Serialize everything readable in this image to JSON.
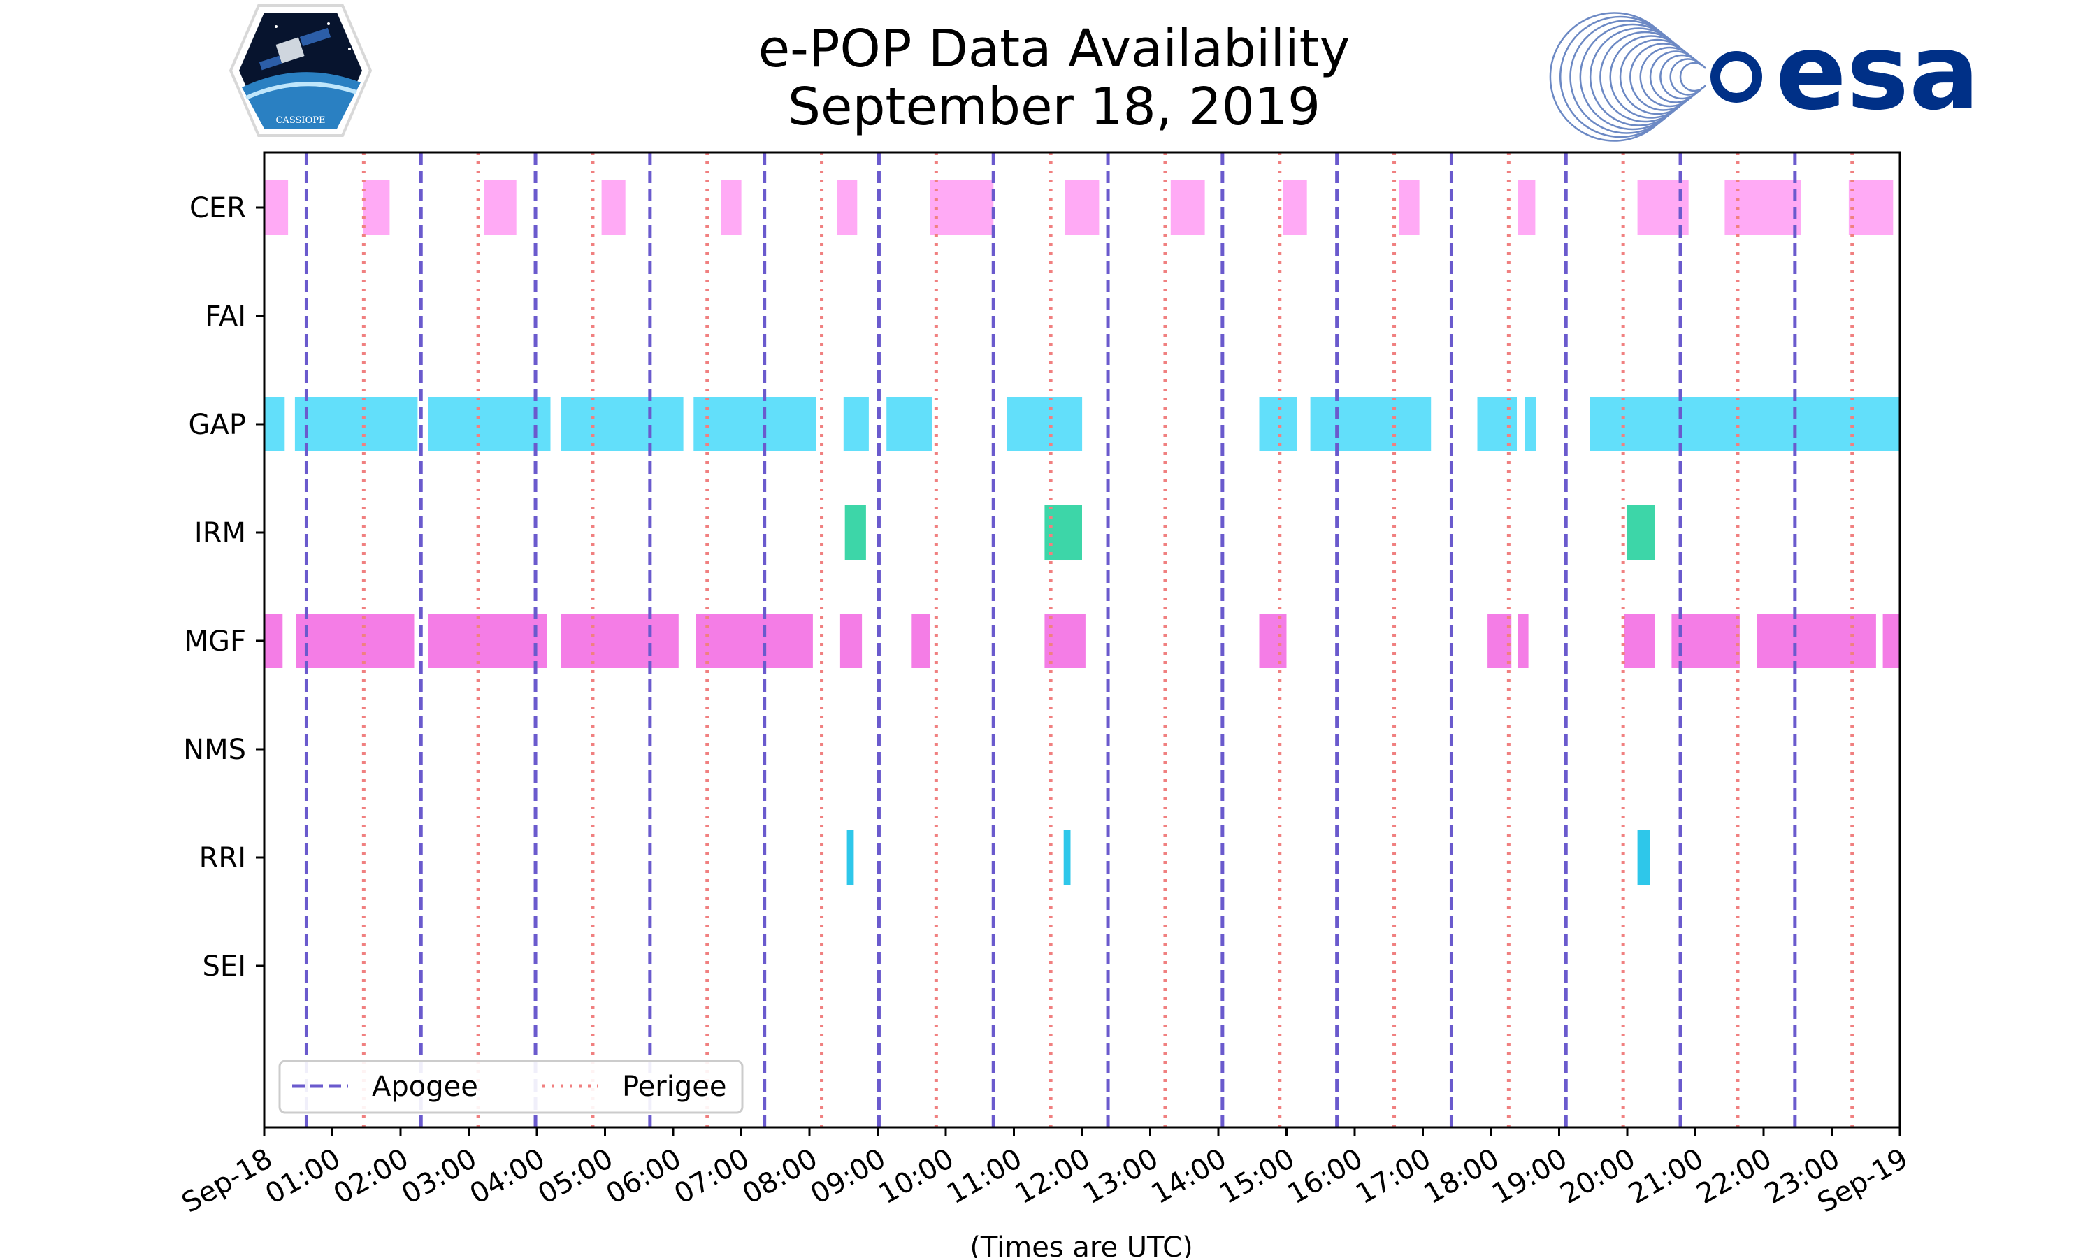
{
  "chart_data": {
    "type": "timeline",
    "title": "e-POP Data Availability",
    "subtitle": "September 18, 2019",
    "xlabel": "(Times are UTC)",
    "x_range_hours": [
      0,
      24
    ],
    "x_ticks": [
      "Sep-18",
      "01:00",
      "02:00",
      "03:00",
      "04:00",
      "05:00",
      "06:00",
      "07:00",
      "08:00",
      "09:00",
      "10:00",
      "11:00",
      "12:00",
      "13:00",
      "14:00",
      "15:00",
      "16:00",
      "17:00",
      "18:00",
      "19:00",
      "20:00",
      "21:00",
      "22:00",
      "23:00",
      "Sep-19"
    ],
    "instruments": [
      "CER",
      "FAI",
      "GAP",
      "IRM",
      "MGF",
      "NMS",
      "RRI",
      "SEI"
    ],
    "colors": {
      "CER": "#ffaaf5",
      "GAP": "#62dffa",
      "IRM": "#3dd6a8",
      "MGF": "#f47de6",
      "RRI": "#2ec7ea",
      "apogee": "#6a5acd",
      "perigee": "#f08080"
    },
    "intervals": {
      "CER": [
        [
          0.0,
          0.35
        ],
        [
          1.45,
          1.84
        ],
        [
          3.23,
          3.7
        ],
        [
          4.95,
          5.3
        ],
        [
          6.7,
          7.0
        ],
        [
          8.4,
          8.7
        ],
        [
          9.77,
          10.7
        ],
        [
          11.75,
          12.25
        ],
        [
          13.3,
          13.8
        ],
        [
          14.95,
          15.3
        ],
        [
          16.65,
          16.95
        ],
        [
          18.4,
          18.65
        ],
        [
          20.15,
          20.9
        ],
        [
          21.43,
          22.55
        ],
        [
          23.25,
          23.9
        ]
      ],
      "FAI": [],
      "GAP": [
        [
          0.0,
          0.3
        ],
        [
          0.45,
          2.25
        ],
        [
          2.4,
          4.2
        ],
        [
          4.35,
          6.15
        ],
        [
          6.3,
          8.1
        ],
        [
          8.5,
          8.87
        ],
        [
          9.13,
          9.8
        ],
        [
          10.9,
          12.0
        ],
        [
          14.6,
          15.15
        ],
        [
          15.35,
          17.12
        ],
        [
          17.8,
          18.38
        ],
        [
          18.5,
          18.66
        ],
        [
          19.45,
          24.0
        ]
      ],
      "IRM": [
        [
          8.52,
          8.83
        ],
        [
          11.45,
          12.0
        ],
        [
          20.0,
          20.4
        ]
      ],
      "MGF": [
        [
          0.0,
          0.27
        ],
        [
          0.47,
          2.2
        ],
        [
          2.4,
          4.15
        ],
        [
          4.35,
          6.08
        ],
        [
          6.33,
          8.05
        ],
        [
          8.45,
          8.77
        ],
        [
          9.5,
          9.77
        ],
        [
          11.45,
          12.05
        ],
        [
          14.6,
          15.0
        ],
        [
          17.95,
          18.3
        ],
        [
          18.4,
          18.55
        ],
        [
          19.95,
          20.4
        ],
        [
          20.65,
          21.65
        ],
        [
          21.9,
          23.65
        ],
        [
          23.75,
          24.0
        ]
      ],
      "NMS": [],
      "RRI": [
        [
          8.55,
          8.65
        ],
        [
          11.73,
          11.83
        ],
        [
          20.15,
          20.33
        ]
      ],
      "SEI": []
    },
    "apogee_hours": [
      0.62,
      2.3,
      3.98,
      5.66,
      7.34,
      9.02,
      10.7,
      12.38,
      14.06,
      15.74,
      17.42,
      19.1,
      20.78,
      22.46
    ],
    "perigee_hours": [
      1.46,
      3.14,
      4.82,
      6.5,
      8.18,
      9.86,
      11.54,
      13.22,
      14.9,
      16.58,
      18.26,
      19.94,
      21.62,
      23.3
    ],
    "legend": {
      "apogee_label": "Apogee",
      "perigee_label": "Perigee",
      "position": "lower-left"
    }
  },
  "logos": {
    "cassiope_text": "CASSIOPE",
    "esa_text": "esa"
  }
}
